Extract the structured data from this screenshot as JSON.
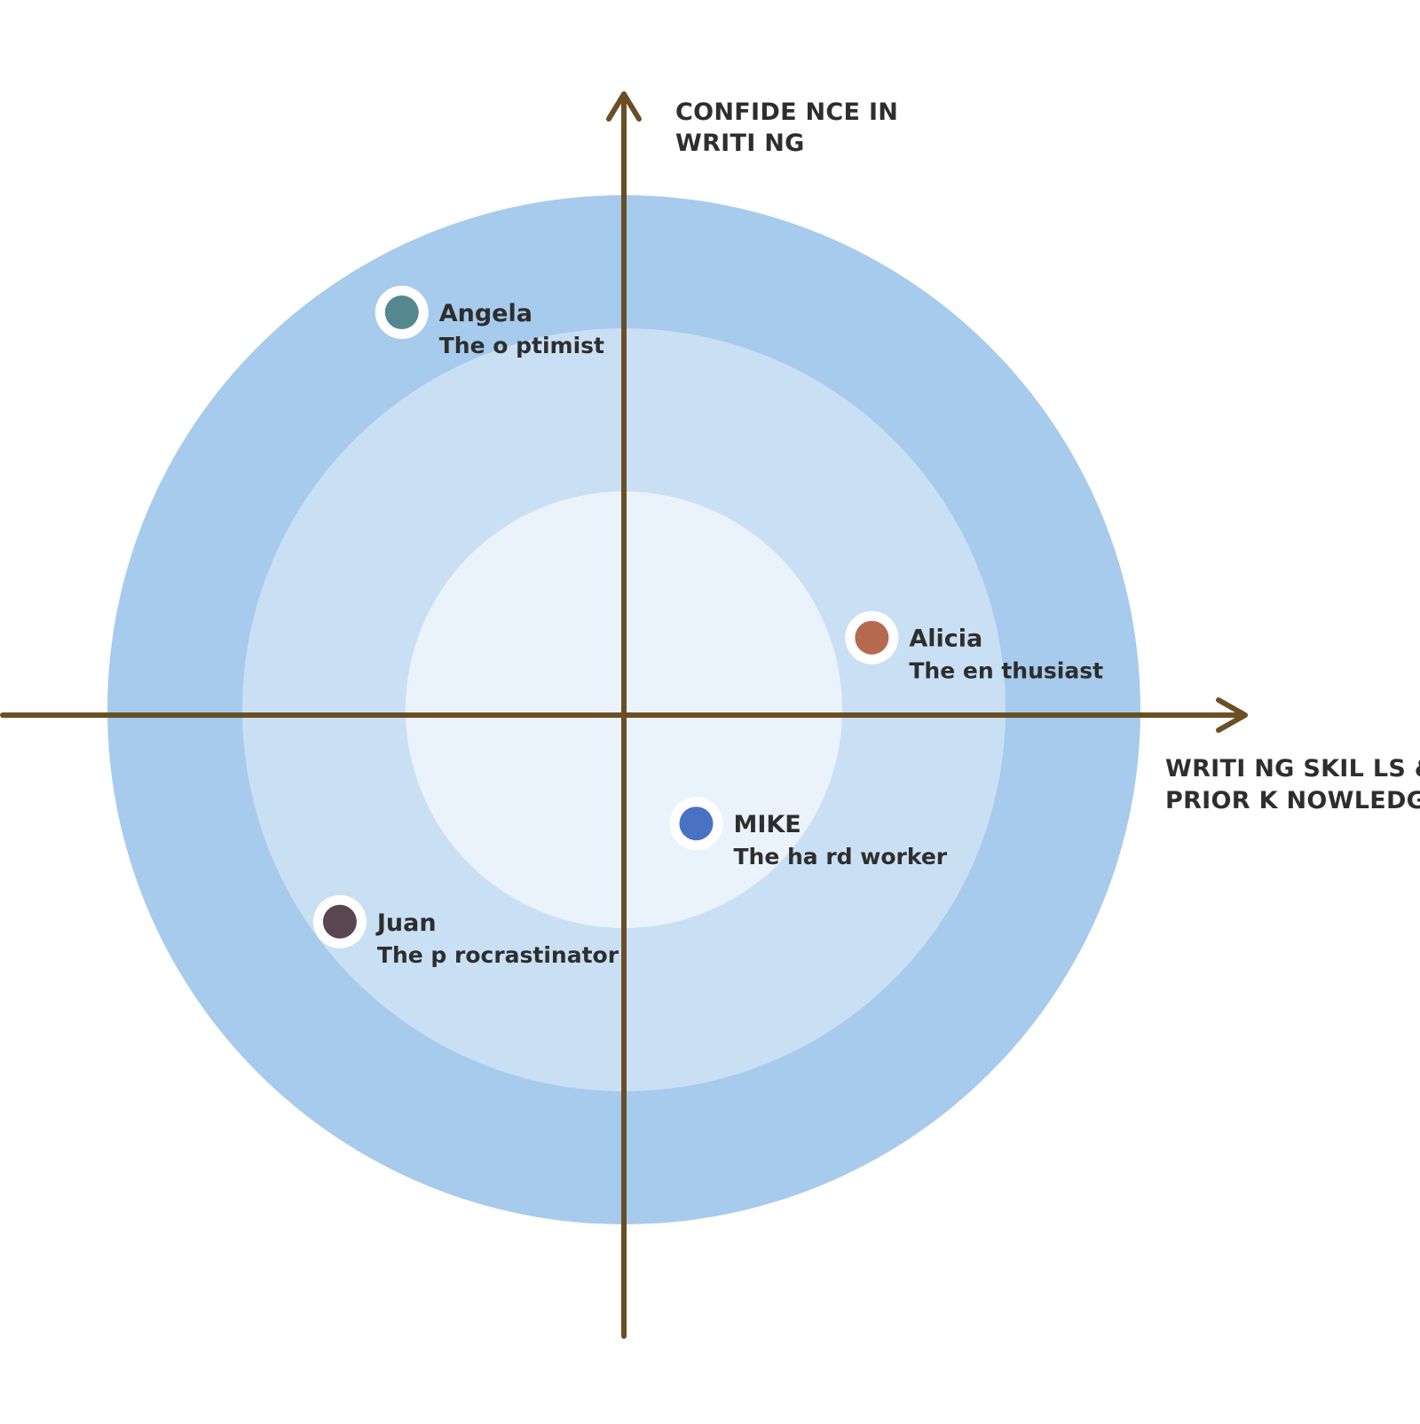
{
  "colors": {
    "ring_outer": "#a6cbec",
    "ring_middle": "#c9e0f4",
    "ring_inner": "#eaf3fb",
    "axis": "#6b4f24",
    "marker_ring": "#ffffff",
    "text": "#2e2e2e"
  },
  "axes": {
    "y_title_lines": [
      "CONFIDE NCE IN",
      "WRITI NG"
    ],
    "x_title_lines": [
      "WRITI NG SKIL LS &",
      "PRIOR K NOWLEDGE"
    ]
  },
  "personas": [
    {
      "name": "Angela",
      "role": "The o ptimist",
      "color": "#55878f",
      "confidence": 0.78,
      "skills": -0.43,
      "label_side": "right"
    },
    {
      "name": "Alicia",
      "role": "The en thusiast",
      "color": "#b56a4f",
      "confidence": 0.15,
      "skills": 0.48,
      "label_side": "right"
    },
    {
      "name": "MIKE",
      "role": "The ha rd worker",
      "color": "#4a72c2",
      "confidence": -0.21,
      "skills": 0.14,
      "label_side": "right"
    },
    {
      "name": "Juan",
      "role": "The p rocrastinator",
      "color": "#5a4650",
      "confidence": -0.4,
      "skills": -0.55,
      "label_side": "right"
    }
  ]
}
